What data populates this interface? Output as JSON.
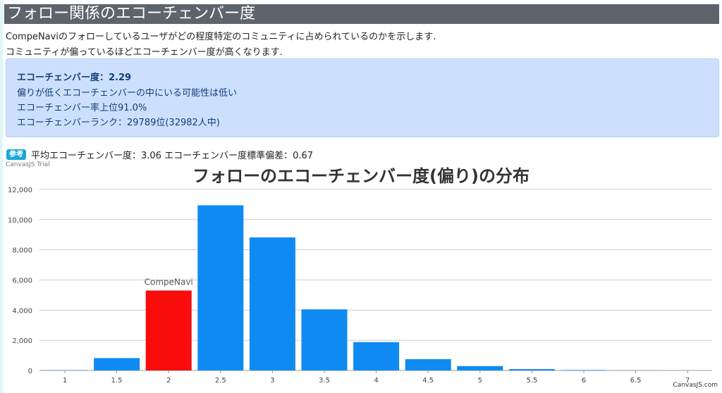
{
  "page": {
    "title": "フォロー関係のエコーチェンバー度",
    "desc_line1": "CompeNaviのフォローしているユーザがどの程度特定のコミュニティに占められているのかを示します.",
    "desc_line2": "コミュニティが偏っているほどエコーチェンバー度が高くなります."
  },
  "alert": {
    "score": "エコーチェンバー度：2.29",
    "comment": "偏りが低くエコーチェンバーの中にいる可能性は低い",
    "rate": "エコーチェンバー率上位91.0%",
    "rank": "エコーチェンバーランク：29789位(32982人中)"
  },
  "reference": {
    "badge": "参考",
    "text": "平均エコーチェンバー度：3.06 エコーチェンバー度標準偏差：0.67"
  },
  "watermark": "CanvasJS Trial",
  "credit": "CanvasJS.com",
  "colors": {
    "bar": "#0f8af3",
    "highlight": "#f90c0c",
    "grid": "#cccccc"
  },
  "chart_data": {
    "type": "bar",
    "title": "フォローのエコーチェンバー度(偏り)の分布",
    "categories": [
      "1",
      "1.5",
      "2",
      "2.5",
      "3",
      "3.5",
      "4",
      "4.5",
      "5",
      "5.5",
      "6",
      "6.5",
      "7"
    ],
    "values": [
      15,
      820,
      5300,
      10950,
      8820,
      4050,
      1880,
      750,
      290,
      90,
      30,
      5,
      0
    ],
    "highlight": {
      "category": "2",
      "label": "CompeNavi"
    },
    "ylim": [
      0,
      12000
    ],
    "yticks": [
      "0",
      "2,000",
      "4,000",
      "6,000",
      "8,000",
      "10,000",
      "12,000"
    ],
    "ytick_values": [
      0,
      2000,
      4000,
      6000,
      8000,
      10000,
      12000
    ],
    "grid": true
  }
}
